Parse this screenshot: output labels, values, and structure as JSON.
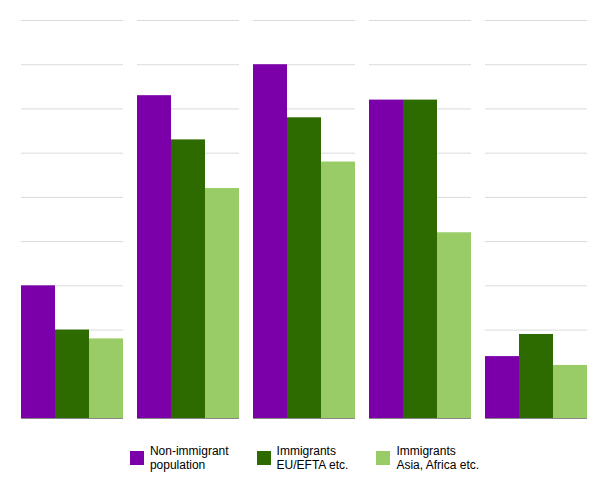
{
  "chart_data": {
    "type": "bar",
    "categories": [
      null,
      null,
      null,
      null,
      null
    ],
    "series": [
      {
        "name": "Non-immigrant\npopulation",
        "color": "#7B00AA",
        "values": [
          30,
          73,
          80,
          72,
          14
        ]
      },
      {
        "name": "Immigrants\nEU/EFTA etc.",
        "color": "#2D6A00",
        "values": [
          20,
          63,
          68,
          72,
          19
        ]
      },
      {
        "name": "Immigrants\nAsia, Africa etc.",
        "color": "#99CC66",
        "values": [
          18,
          52,
          58,
          42,
          12
        ]
      }
    ],
    "ylim": [
      0,
      90
    ],
    "yticks": [
      0,
      10,
      20,
      30,
      40,
      50,
      60,
      70,
      80,
      90
    ],
    "grid": true,
    "tick_labels": false,
    "legend": "bottom"
  }
}
